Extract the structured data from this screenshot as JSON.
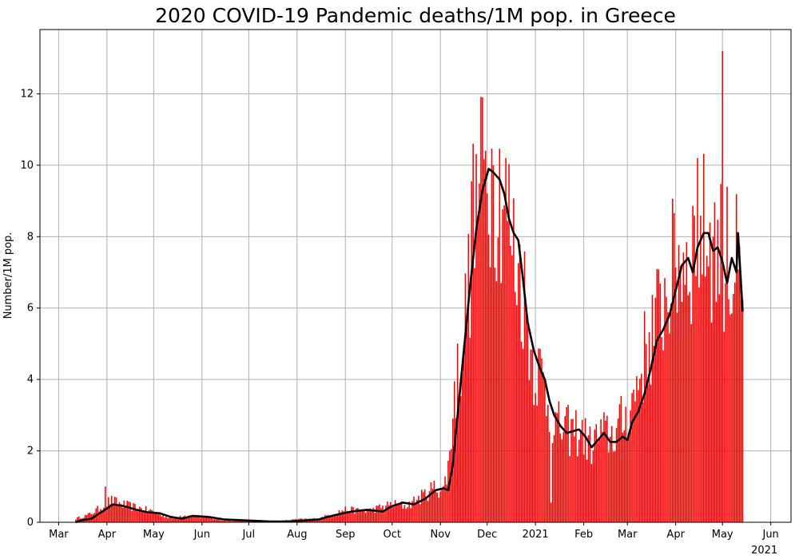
{
  "chart_data": {
    "type": "bar",
    "title": "2020 COVID-19 Pandemic deaths/1M pop. in Greece",
    "xlabel": "",
    "ylabel": "Number/1M pop.",
    "ylim": [
      0,
      13.8
    ],
    "yticks": [
      0,
      2,
      4,
      6,
      8,
      10,
      12
    ],
    "x_ticks": [
      {
        "label": "Mar",
        "date": "2020-03-01"
      },
      {
        "label": "Apr",
        "date": "2020-04-01"
      },
      {
        "label": "May",
        "date": "2020-05-01"
      },
      {
        "label": "Jun",
        "date": "2020-06-01"
      },
      {
        "label": "Jul",
        "date": "2020-07-01"
      },
      {
        "label": "Aug",
        "date": "2020-08-01"
      },
      {
        "label": "Sep",
        "date": "2020-09-01"
      },
      {
        "label": "Oct",
        "date": "2020-10-01"
      },
      {
        "label": "Nov",
        "date": "2020-11-01"
      },
      {
        "label": "Dec",
        "date": "2020-12-01"
      },
      {
        "label": "2021",
        "date": "2021-01-01"
      },
      {
        "label": "Feb",
        "date": "2021-02-01"
      },
      {
        "label": "Mar",
        "date": "2021-03-01"
      },
      {
        "label": "Apr",
        "date": "2021-04-01"
      },
      {
        "label": "May",
        "date": "2021-05-01"
      },
      {
        "label": "Jun",
        "date": "2021-06-01"
      }
    ],
    "x_secondary_label": "2021",
    "grid": true,
    "bar_color": "#ff0000",
    "line_color": "#000000",
    "series": [
      {
        "type": "bar",
        "x_start": "2020-03-12",
        "x_end": "2021-05-14",
        "keypoints": [
          [
            "2020-03-12",
            0.1
          ],
          [
            "2020-03-20",
            0.2
          ],
          [
            "2020-03-28",
            0.4
          ],
          [
            "2020-04-03",
            0.6
          ],
          [
            "2020-04-10",
            0.5
          ],
          [
            "2020-04-20",
            0.4
          ],
          [
            "2020-05-01",
            0.3
          ],
          [
            "2020-05-12",
            0.1
          ],
          [
            "2020-05-20",
            0.2
          ],
          [
            "2020-06-01",
            0.15
          ],
          [
            "2020-06-15",
            0.05
          ],
          [
            "2020-07-01",
            0.05
          ],
          [
            "2020-07-20",
            0.03
          ],
          [
            "2020-08-01",
            0.08
          ],
          [
            "2020-08-15",
            0.1
          ],
          [
            "2020-08-25",
            0.25
          ],
          [
            "2020-09-01",
            0.35
          ],
          [
            "2020-09-15",
            0.3
          ],
          [
            "2020-10-01",
            0.5
          ],
          [
            "2020-10-10",
            0.45
          ],
          [
            "2020-10-20",
            0.7
          ],
          [
            "2020-10-28",
            0.95
          ],
          [
            "2020-11-03",
            0.9
          ],
          [
            "2020-11-06",
            1.5
          ],
          [
            "2020-11-10",
            3.5
          ],
          [
            "2020-11-15",
            4.8
          ],
          [
            "2020-11-20",
            7.0
          ],
          [
            "2020-11-25",
            9.0
          ],
          [
            "2020-12-01",
            9.6
          ],
          [
            "2020-12-06",
            9.4
          ],
          [
            "2020-12-12",
            9.0
          ],
          [
            "2020-12-18",
            7.5
          ],
          [
            "2020-12-24",
            6.5
          ],
          [
            "2020-12-30",
            4.5
          ],
          [
            "2021-01-05",
            4.0
          ],
          [
            "2021-01-10",
            3.2
          ],
          [
            "2021-01-15",
            2.6
          ],
          [
            "2021-01-22",
            2.5
          ],
          [
            "2021-01-30",
            2.5
          ],
          [
            "2021-02-05",
            2.1
          ],
          [
            "2021-02-12",
            2.4
          ],
          [
            "2021-02-20",
            2.4
          ],
          [
            "2021-02-28",
            2.9
          ],
          [
            "2021-03-05",
            3.4
          ],
          [
            "2021-03-10",
            4.3
          ],
          [
            "2021-03-15",
            5.0
          ],
          [
            "2021-03-22",
            5.8
          ],
          [
            "2021-03-28",
            6.7
          ],
          [
            "2021-04-03",
            7.3
          ],
          [
            "2021-04-10",
            7.4
          ],
          [
            "2021-04-15",
            7.8
          ],
          [
            "2021-04-20",
            8.0
          ],
          [
            "2021-04-25",
            7.6
          ],
          [
            "2021-05-01",
            7.4
          ],
          [
            "2021-05-05",
            6.6
          ],
          [
            "2021-05-10",
            7.0
          ],
          [
            "2021-05-14",
            5.5
          ]
        ],
        "spikes": [
          [
            "2020-03-31",
            1.0
          ],
          [
            "2020-11-22",
            10.6
          ],
          [
            "2020-11-28",
            11.9
          ],
          [
            "2020-12-05",
            10.0
          ],
          [
            "2021-04-15",
            10.2
          ],
          [
            "2021-05-01",
            13.2
          ],
          [
            "2021-05-04",
            9.4
          ],
          [
            "2021-01-11",
            0.55
          ]
        ]
      },
      {
        "type": "line",
        "name": "",
        "points": [
          [
            "2020-03-12",
            0.0
          ],
          [
            "2020-03-15",
            0.05
          ],
          [
            "2020-03-22",
            0.1
          ],
          [
            "2020-03-29",
            0.3
          ],
          [
            "2020-04-05",
            0.5
          ],
          [
            "2020-04-12",
            0.45
          ],
          [
            "2020-04-20",
            0.35
          ],
          [
            "2020-04-27",
            0.28
          ],
          [
            "2020-05-05",
            0.25
          ],
          [
            "2020-05-12",
            0.15
          ],
          [
            "2020-05-19",
            0.1
          ],
          [
            "2020-05-26",
            0.18
          ],
          [
            "2020-06-05",
            0.15
          ],
          [
            "2020-06-15",
            0.08
          ],
          [
            "2020-06-25",
            0.06
          ],
          [
            "2020-07-05",
            0.04
          ],
          [
            "2020-07-15",
            0.02
          ],
          [
            "2020-07-25",
            0.02
          ],
          [
            "2020-08-05",
            0.05
          ],
          [
            "2020-08-15",
            0.08
          ],
          [
            "2020-08-25",
            0.2
          ],
          [
            "2020-09-05",
            0.3
          ],
          [
            "2020-09-15",
            0.35
          ],
          [
            "2020-09-25",
            0.3
          ],
          [
            "2020-10-01",
            0.45
          ],
          [
            "2020-10-08",
            0.55
          ],
          [
            "2020-10-15",
            0.5
          ],
          [
            "2020-10-22",
            0.65
          ],
          [
            "2020-10-29",
            0.9
          ],
          [
            "2020-11-03",
            0.95
          ],
          [
            "2020-11-06",
            0.9
          ],
          [
            "2020-11-09",
            1.6
          ],
          [
            "2020-11-12",
            3.0
          ],
          [
            "2020-11-16",
            4.8
          ],
          [
            "2020-11-20",
            6.6
          ],
          [
            "2020-11-24",
            8.2
          ],
          [
            "2020-11-28",
            9.3
          ],
          [
            "2020-12-02",
            9.9
          ],
          [
            "2020-12-05",
            9.8
          ],
          [
            "2020-12-09",
            9.6
          ],
          [
            "2020-12-12",
            9.2
          ],
          [
            "2020-12-15",
            8.5
          ],
          [
            "2020-12-18",
            8.1
          ],
          [
            "2020-12-21",
            7.9
          ],
          [
            "2020-12-24",
            6.8
          ],
          [
            "2020-12-27",
            5.6
          ],
          [
            "2020-12-31",
            4.8
          ],
          [
            "2021-01-04",
            4.3
          ],
          [
            "2021-01-07",
            4.0
          ],
          [
            "2021-01-10",
            3.4
          ],
          [
            "2021-01-13",
            3.0
          ],
          [
            "2021-01-17",
            2.7
          ],
          [
            "2021-01-21",
            2.5
          ],
          [
            "2021-01-25",
            2.55
          ],
          [
            "2021-01-29",
            2.6
          ],
          [
            "2021-02-02",
            2.4
          ],
          [
            "2021-02-06",
            2.1
          ],
          [
            "2021-02-10",
            2.3
          ],
          [
            "2021-02-14",
            2.5
          ],
          [
            "2021-02-18",
            2.25
          ],
          [
            "2021-02-22",
            2.25
          ],
          [
            "2021-02-26",
            2.4
          ],
          [
            "2021-03-01",
            2.3
          ],
          [
            "2021-03-04",
            2.8
          ],
          [
            "2021-03-08",
            3.1
          ],
          [
            "2021-03-12",
            3.6
          ],
          [
            "2021-03-16",
            4.3
          ],
          [
            "2021-03-20",
            5.1
          ],
          [
            "2021-03-24",
            5.4
          ],
          [
            "2021-03-28",
            5.8
          ],
          [
            "2021-04-01",
            6.5
          ],
          [
            "2021-04-05",
            7.2
          ],
          [
            "2021-04-09",
            7.4
          ],
          [
            "2021-04-12",
            7.0
          ],
          [
            "2021-04-15",
            7.7
          ],
          [
            "2021-04-19",
            8.1
          ],
          [
            "2021-04-22",
            8.1
          ],
          [
            "2021-04-25",
            7.6
          ],
          [
            "2021-04-28",
            7.7
          ],
          [
            "2021-05-01",
            7.3
          ],
          [
            "2021-05-04",
            6.7
          ],
          [
            "2021-05-07",
            7.4
          ],
          [
            "2021-05-10",
            7.0
          ],
          [
            "2021-05-11",
            8.1
          ],
          [
            "2021-05-14",
            5.9
          ]
        ]
      }
    ]
  }
}
